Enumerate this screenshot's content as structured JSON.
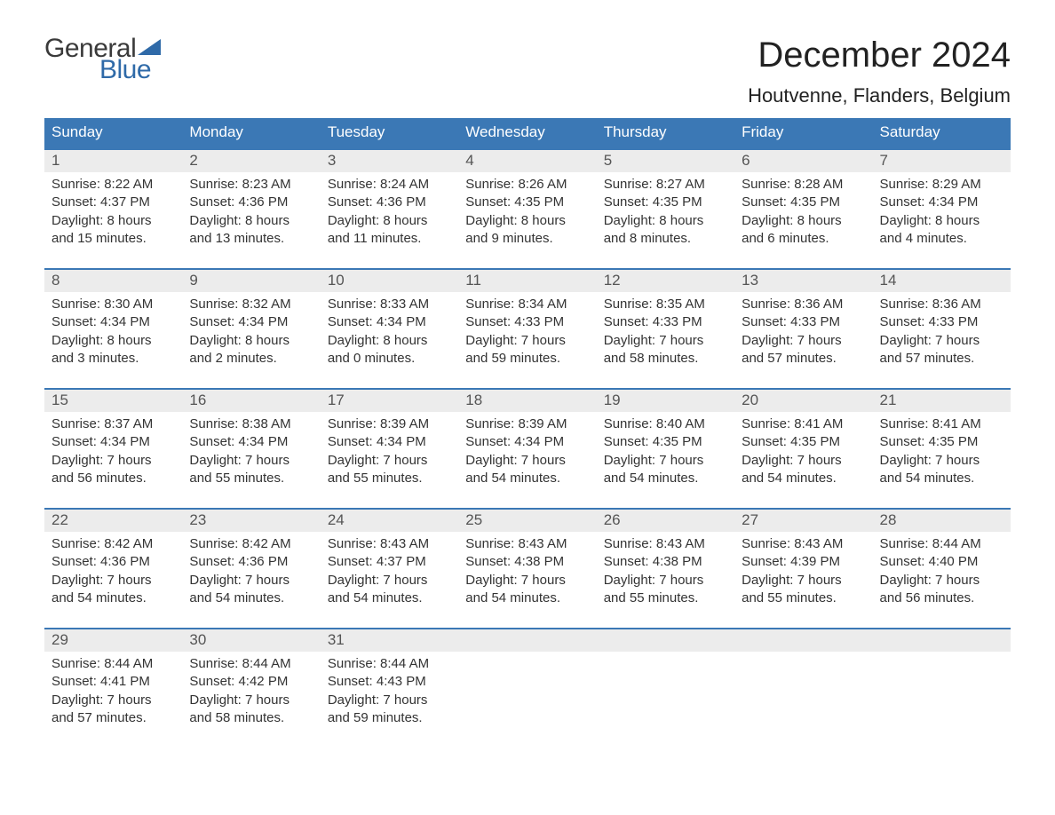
{
  "colors": {
    "header_bg": "#3b78b5",
    "accent_blue": "#2f6aa8",
    "row_border": "#3b78b5",
    "daynum_bg": "#ececec",
    "logo_blue": "#2f6aa8",
    "text_dark": "#333333"
  },
  "logo": {
    "word1": "General",
    "word2": "Blue"
  },
  "title": "December 2024",
  "location": "Houtvenne, Flanders, Belgium",
  "weekdays": [
    "Sunday",
    "Monday",
    "Tuesday",
    "Wednesday",
    "Thursday",
    "Friday",
    "Saturday"
  ],
  "weeks": [
    {
      "days": [
        {
          "num": "1",
          "sunrise": "Sunrise: 8:22 AM",
          "sunset": "Sunset: 4:37 PM",
          "dl1": "Daylight: 8 hours",
          "dl2": "and 15 minutes."
        },
        {
          "num": "2",
          "sunrise": "Sunrise: 8:23 AM",
          "sunset": "Sunset: 4:36 PM",
          "dl1": "Daylight: 8 hours",
          "dl2": "and 13 minutes."
        },
        {
          "num": "3",
          "sunrise": "Sunrise: 8:24 AM",
          "sunset": "Sunset: 4:36 PM",
          "dl1": "Daylight: 8 hours",
          "dl2": "and 11 minutes."
        },
        {
          "num": "4",
          "sunrise": "Sunrise: 8:26 AM",
          "sunset": "Sunset: 4:35 PM",
          "dl1": "Daylight: 8 hours",
          "dl2": "and 9 minutes."
        },
        {
          "num": "5",
          "sunrise": "Sunrise: 8:27 AM",
          "sunset": "Sunset: 4:35 PM",
          "dl1": "Daylight: 8 hours",
          "dl2": "and 8 minutes."
        },
        {
          "num": "6",
          "sunrise": "Sunrise: 8:28 AM",
          "sunset": "Sunset: 4:35 PM",
          "dl1": "Daylight: 8 hours",
          "dl2": "and 6 minutes."
        },
        {
          "num": "7",
          "sunrise": "Sunrise: 8:29 AM",
          "sunset": "Sunset: 4:34 PM",
          "dl1": "Daylight: 8 hours",
          "dl2": "and 4 minutes."
        }
      ]
    },
    {
      "days": [
        {
          "num": "8",
          "sunrise": "Sunrise: 8:30 AM",
          "sunset": "Sunset: 4:34 PM",
          "dl1": "Daylight: 8 hours",
          "dl2": "and 3 minutes."
        },
        {
          "num": "9",
          "sunrise": "Sunrise: 8:32 AM",
          "sunset": "Sunset: 4:34 PM",
          "dl1": "Daylight: 8 hours",
          "dl2": "and 2 minutes."
        },
        {
          "num": "10",
          "sunrise": "Sunrise: 8:33 AM",
          "sunset": "Sunset: 4:34 PM",
          "dl1": "Daylight: 8 hours",
          "dl2": "and 0 minutes."
        },
        {
          "num": "11",
          "sunrise": "Sunrise: 8:34 AM",
          "sunset": "Sunset: 4:33 PM",
          "dl1": "Daylight: 7 hours",
          "dl2": "and 59 minutes."
        },
        {
          "num": "12",
          "sunrise": "Sunrise: 8:35 AM",
          "sunset": "Sunset: 4:33 PM",
          "dl1": "Daylight: 7 hours",
          "dl2": "and 58 minutes."
        },
        {
          "num": "13",
          "sunrise": "Sunrise: 8:36 AM",
          "sunset": "Sunset: 4:33 PM",
          "dl1": "Daylight: 7 hours",
          "dl2": "and 57 minutes."
        },
        {
          "num": "14",
          "sunrise": "Sunrise: 8:36 AM",
          "sunset": "Sunset: 4:33 PM",
          "dl1": "Daylight: 7 hours",
          "dl2": "and 57 minutes."
        }
      ]
    },
    {
      "days": [
        {
          "num": "15",
          "sunrise": "Sunrise: 8:37 AM",
          "sunset": "Sunset: 4:34 PM",
          "dl1": "Daylight: 7 hours",
          "dl2": "and 56 minutes."
        },
        {
          "num": "16",
          "sunrise": "Sunrise: 8:38 AM",
          "sunset": "Sunset: 4:34 PM",
          "dl1": "Daylight: 7 hours",
          "dl2": "and 55 minutes."
        },
        {
          "num": "17",
          "sunrise": "Sunrise: 8:39 AM",
          "sunset": "Sunset: 4:34 PM",
          "dl1": "Daylight: 7 hours",
          "dl2": "and 55 minutes."
        },
        {
          "num": "18",
          "sunrise": "Sunrise: 8:39 AM",
          "sunset": "Sunset: 4:34 PM",
          "dl1": "Daylight: 7 hours",
          "dl2": "and 54 minutes."
        },
        {
          "num": "19",
          "sunrise": "Sunrise: 8:40 AM",
          "sunset": "Sunset: 4:35 PM",
          "dl1": "Daylight: 7 hours",
          "dl2": "and 54 minutes."
        },
        {
          "num": "20",
          "sunrise": "Sunrise: 8:41 AM",
          "sunset": "Sunset: 4:35 PM",
          "dl1": "Daylight: 7 hours",
          "dl2": "and 54 minutes."
        },
        {
          "num": "21",
          "sunrise": "Sunrise: 8:41 AM",
          "sunset": "Sunset: 4:35 PM",
          "dl1": "Daylight: 7 hours",
          "dl2": "and 54 minutes."
        }
      ]
    },
    {
      "days": [
        {
          "num": "22",
          "sunrise": "Sunrise: 8:42 AM",
          "sunset": "Sunset: 4:36 PM",
          "dl1": "Daylight: 7 hours",
          "dl2": "and 54 minutes."
        },
        {
          "num": "23",
          "sunrise": "Sunrise: 8:42 AM",
          "sunset": "Sunset: 4:36 PM",
          "dl1": "Daylight: 7 hours",
          "dl2": "and 54 minutes."
        },
        {
          "num": "24",
          "sunrise": "Sunrise: 8:43 AM",
          "sunset": "Sunset: 4:37 PM",
          "dl1": "Daylight: 7 hours",
          "dl2": "and 54 minutes."
        },
        {
          "num": "25",
          "sunrise": "Sunrise: 8:43 AM",
          "sunset": "Sunset: 4:38 PM",
          "dl1": "Daylight: 7 hours",
          "dl2": "and 54 minutes."
        },
        {
          "num": "26",
          "sunrise": "Sunrise: 8:43 AM",
          "sunset": "Sunset: 4:38 PM",
          "dl1": "Daylight: 7 hours",
          "dl2": "and 55 minutes."
        },
        {
          "num": "27",
          "sunrise": "Sunrise: 8:43 AM",
          "sunset": "Sunset: 4:39 PM",
          "dl1": "Daylight: 7 hours",
          "dl2": "and 55 minutes."
        },
        {
          "num": "28",
          "sunrise": "Sunrise: 8:44 AM",
          "sunset": "Sunset: 4:40 PM",
          "dl1": "Daylight: 7 hours",
          "dl2": "and 56 minutes."
        }
      ]
    },
    {
      "days": [
        {
          "num": "29",
          "sunrise": "Sunrise: 8:44 AM",
          "sunset": "Sunset: 4:41 PM",
          "dl1": "Daylight: 7 hours",
          "dl2": "and 57 minutes."
        },
        {
          "num": "30",
          "sunrise": "Sunrise: 8:44 AM",
          "sunset": "Sunset: 4:42 PM",
          "dl1": "Daylight: 7 hours",
          "dl2": "and 58 minutes."
        },
        {
          "num": "31",
          "sunrise": "Sunrise: 8:44 AM",
          "sunset": "Sunset: 4:43 PM",
          "dl1": "Daylight: 7 hours",
          "dl2": "and 59 minutes."
        },
        {
          "num": "",
          "sunrise": "",
          "sunset": "",
          "dl1": "",
          "dl2": ""
        },
        {
          "num": "",
          "sunrise": "",
          "sunset": "",
          "dl1": "",
          "dl2": ""
        },
        {
          "num": "",
          "sunrise": "",
          "sunset": "",
          "dl1": "",
          "dl2": ""
        },
        {
          "num": "",
          "sunrise": "",
          "sunset": "",
          "dl1": "",
          "dl2": ""
        }
      ]
    }
  ]
}
